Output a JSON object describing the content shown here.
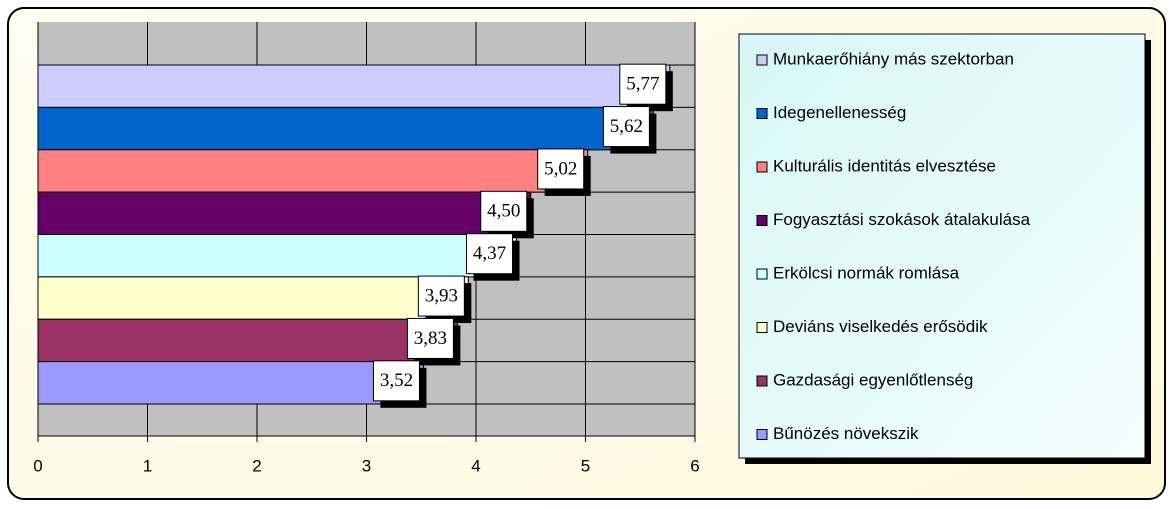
{
  "chart_data": {
    "type": "bar",
    "orientation": "horizontal",
    "categories": [
      "Munkaerőhiány más szektorban",
      "Idegenellenesség",
      "Kulturális identitás elvesztése",
      "Fogyasztási szokások átalakulása",
      "Erkölcsi normák romlása",
      "Deviáns viselkedés erősödik",
      "Gazdasági egyenlőtlenség",
      "Bűnözés növekszik"
    ],
    "values": [
      5.77,
      5.62,
      5.02,
      4.5,
      4.37,
      3.93,
      3.83,
      3.52
    ],
    "value_labels": [
      "5,77",
      "5,62",
      "5,02",
      "4,50",
      "4,37",
      "3,93",
      "3,83",
      "3,52"
    ],
    "colors": [
      "#ccccff",
      "#0066cc",
      "#ff8080",
      "#660066",
      "#ccffff",
      "#ffffcc",
      "#993366",
      "#9999ff"
    ],
    "xlim": [
      0,
      6
    ],
    "xticks": [
      0,
      1,
      2,
      3,
      4,
      5,
      6
    ],
    "grid": true,
    "legend": "right"
  }
}
